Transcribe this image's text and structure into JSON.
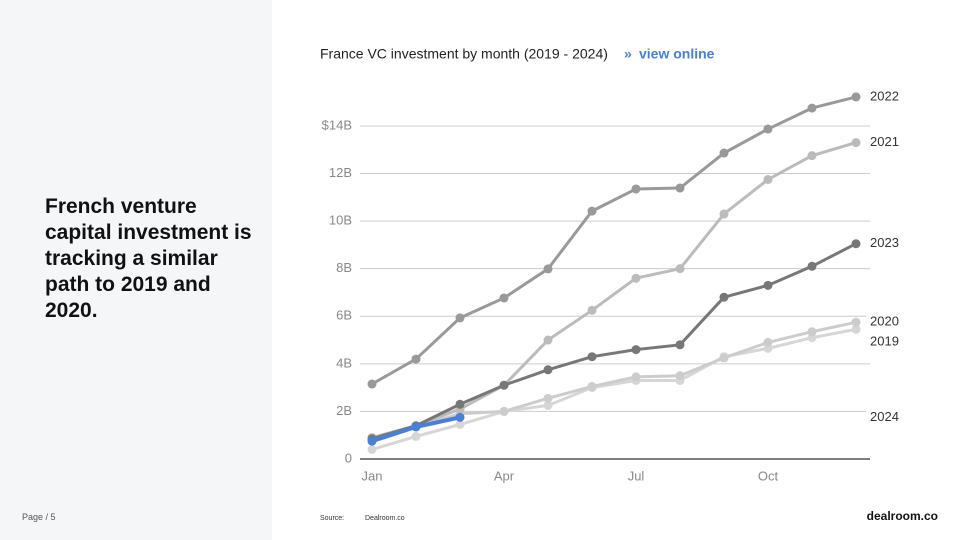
{
  "slide": {
    "headline": "French venture capital investment is tracking a similar path to 2019 and 2020.",
    "page": "Page / 5",
    "source_label": "Source:",
    "source": "Dealroom.co",
    "brand": "dealroom.co"
  },
  "chart_data": {
    "type": "line",
    "title": "France VC investment by month (2019 - 2024)",
    "link": "view online",
    "categories": [
      "Jan",
      null,
      null,
      "Apr",
      null,
      null,
      "Jul",
      null,
      null,
      "Oct",
      null,
      null
    ],
    "ylim": [
      0,
      15.5
    ],
    "yticks": [
      0,
      {
        "value": 2,
        "label": "2B"
      },
      {
        "value": 4,
        "label": "4B"
      },
      {
        "value": 6,
        "label": "6B"
      },
      {
        "value": 8,
        "label": "8B"
      },
      {
        "value": 10,
        "label": "10B"
      },
      {
        "value": 12,
        "label": "12B"
      },
      {
        "value": 14,
        "label": "$14B"
      }
    ],
    "grid": true,
    "series": [
      {
        "name": "2019",
        "color": "#d6d6d6",
        "values": [
          0.4,
          0.95,
          1.45,
          2.0,
          2.25,
          3.0,
          3.3,
          3.3,
          4.3,
          4.65,
          5.1,
          5.45
        ]
      },
      {
        "name": "2020",
        "color": "#cccccc",
        "values": [
          0.8,
          1.35,
          1.9,
          2.0,
          2.55,
          3.05,
          3.45,
          3.5,
          4.25,
          4.9,
          5.35,
          5.75
        ]
      },
      {
        "name": "2021",
        "color": "#bbbbbb",
        "values": [
          0.9,
          1.4,
          2.1,
          3.1,
          5.0,
          6.25,
          7.6,
          8.0,
          10.3,
          11.75,
          12.75,
          13.3
        ]
      },
      {
        "name": "2023",
        "color": "#777777",
        "values": [
          0.85,
          1.4,
          2.3,
          3.1,
          3.75,
          4.3,
          4.6,
          4.8,
          6.8,
          7.3,
          8.1,
          9.05
        ]
      },
      {
        "name": "2022",
        "color": "#999999",
        "values": [
          3.15,
          4.2,
          5.93,
          6.77,
          7.99,
          10.42,
          11.35,
          11.39,
          12.86,
          13.87,
          14.75,
          15.22
        ]
      },
      {
        "name": "2024",
        "color": "#4a7fd4",
        "values": [
          0.75,
          1.35,
          1.75,
          null,
          null,
          null,
          null,
          null,
          null,
          null,
          null,
          null
        ]
      }
    ]
  }
}
